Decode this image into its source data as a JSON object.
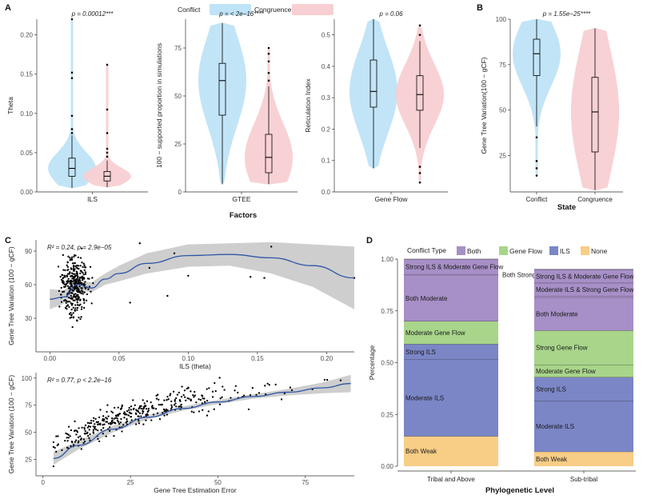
{
  "colors": {
    "conflict": "#bfe3f7",
    "congruence": "#f8cfd2",
    "both": "#a78fc7",
    "geneflow": "#a8d58a",
    "ils": "#7b86c6",
    "none": "#f8cd86",
    "line": "#2e56a6",
    "band": "#bdbdbd"
  },
  "panel_labels": {
    "a": "A",
    "b": "B",
    "c": "C",
    "d": "D"
  },
  "legend_a": {
    "conflict": "Conflict",
    "congruence": "Congruence"
  },
  "chart_data": [
    {
      "id": "a1",
      "type": "violin",
      "title": "p = 0.00012***",
      "xlabel": "ILS",
      "ylabel": "Theta",
      "ylim": [
        0,
        0.22
      ],
      "yticks": [
        "0.00",
        "0.05",
        "0.10",
        "0.15",
        "0.20"
      ],
      "ytick_values": [
        0,
        0.05,
        0.1,
        0.15,
        0.2
      ],
      "groups": [
        {
          "name": "Conflict",
          "min": 0.005,
          "q1": 0.02,
          "median": 0.03,
          "q3": 0.043,
          "max": 0.072,
          "outliers": [
            0.075,
            0.08,
            0.097,
            0.145,
            0.152,
            0.22
          ]
        },
        {
          "name": "Congruence",
          "min": 0.006,
          "q1": 0.014,
          "median": 0.02,
          "q3": 0.026,
          "max": 0.04,
          "outliers": [
            0.045,
            0.05,
            0.055,
            0.075,
            0.105,
            0.162
          ]
        }
      ]
    },
    {
      "id": "a2",
      "type": "violin",
      "title": "p = < 2e−16****",
      "xlabel": "GTEE",
      "ylabel": "100 − supported proportion in simulations",
      "ylim": [
        0,
        90
      ],
      "yticks": [
        "0",
        "25",
        "50",
        "75"
      ],
      "ytick_values": [
        0,
        25,
        50,
        75
      ],
      "groups": [
        {
          "name": "Conflict",
          "min": 4,
          "q1": 40,
          "median": 58,
          "q3": 67,
          "max": 88,
          "outliers": []
        },
        {
          "name": "Congruence",
          "min": 4,
          "q1": 10,
          "median": 18,
          "q3": 30,
          "max": 55,
          "outliers": [
            58,
            62,
            68,
            72,
            75
          ]
        }
      ]
    },
    {
      "id": "a3",
      "type": "violin",
      "title": "p = 0.06",
      "xlabel": "Gene Flow",
      "ylabel": "Reticulation Index",
      "ylim": [
        0,
        0.55
      ],
      "yticks": [
        "0.0",
        "0.1",
        "0.2",
        "0.3",
        "0.4",
        "0.5"
      ],
      "ytick_values": [
        0,
        0.1,
        0.2,
        0.3,
        0.4,
        0.5
      ],
      "groups": [
        {
          "name": "Conflict",
          "min": 0.075,
          "q1": 0.27,
          "median": 0.32,
          "q3": 0.42,
          "max": 0.55,
          "outliers": []
        },
        {
          "name": "Congruence",
          "min": 0.14,
          "q1": 0.26,
          "median": 0.31,
          "q3": 0.37,
          "max": 0.48,
          "outliers": [
            0.03,
            0.06,
            0.08,
            0.5,
            0.53
          ]
        }
      ]
    },
    {
      "id": "a_factor",
      "xlabel": "Factors"
    },
    {
      "id": "b",
      "type": "violin",
      "title": "p = 1.55e−25****",
      "xlabel": "State",
      "ylabel": "Gene Tree Variation(100 − gCF)",
      "ylim": [
        5,
        100
      ],
      "categories": [
        "Conflict",
        "Congruence"
      ],
      "yticks": [
        "25",
        "50",
        "75",
        "100"
      ],
      "ytick_values": [
        25,
        50,
        75,
        100
      ],
      "groups": [
        {
          "name": "Conflict",
          "min": 41,
          "q1": 69,
          "median": 81,
          "q3": 89,
          "max": 100,
          "outliers": [
            14,
            18,
            22,
            35
          ]
        },
        {
          "name": "Congruence",
          "min": 6,
          "q1": 27,
          "median": 49,
          "q3": 68,
          "max": 95,
          "outliers": []
        }
      ]
    },
    {
      "id": "c1",
      "type": "scatter",
      "annotation": "R² = 0.24, p = 2.9e−05",
      "xlabel": "ILS (theta)",
      "ylabel": "Gene Tree Variation (100 − gCF)",
      "xlim": [
        -0.01,
        0.22
      ],
      "ylim": [
        0,
        100
      ],
      "xticks": [
        "0.00",
        "0.05",
        "0.10",
        "0.15",
        "0.20"
      ],
      "xtick_values": [
        0,
        0.05,
        0.1,
        0.15,
        0.2
      ],
      "yticks": [
        "30",
        "60",
        "90"
      ],
      "ytick_values": [
        30,
        60,
        90
      ],
      "fit": {
        "x": [
          0,
          0.01,
          0.02,
          0.03,
          0.04,
          0.05,
          0.07,
          0.1,
          0.13,
          0.16,
          0.19,
          0.22
        ],
        "y": [
          47,
          49,
          60,
          57,
          65,
          70,
          79,
          86,
          87,
          84,
          77,
          66
        ]
      },
      "band": {
        "x": [
          0,
          0.01,
          0.02,
          0.03,
          0.04,
          0.05,
          0.07,
          0.1,
          0.13,
          0.16,
          0.19,
          0.22
        ],
        "lower": [
          38,
          43,
          56,
          53,
          60,
          63,
          70,
          76,
          77,
          70,
          58,
          38
        ],
        "upper": [
          56,
          55,
          64,
          62,
          70,
          77,
          88,
          96,
          97,
          98,
          96,
          94
        ]
      },
      "extra_points": [
        {
          "x": 0.085,
          "y": 50
        },
        {
          "x": 0.1,
          "y": 68
        },
        {
          "x": 0.145,
          "y": 67
        },
        {
          "x": 0.155,
          "y": 66
        },
        {
          "x": 0.16,
          "y": 94
        },
        {
          "x": 0.22,
          "y": 66
        },
        {
          "x": 0.09,
          "y": 88
        },
        {
          "x": 0.065,
          "y": 97
        },
        {
          "x": 0.072,
          "y": 75
        },
        {
          "x": 0.058,
          "y": 44
        }
      ]
    },
    {
      "id": "c2",
      "type": "scatter",
      "annotation": "R² = 0.77, p < 2.2e−16",
      "xlabel": "Gene Tree Estimation Error",
      "ylabel": "Gene Tree Variation (100 − gCF)",
      "xlim": [
        -2,
        89
      ],
      "ylim": [
        10,
        105
      ],
      "xticks": [
        "0",
        "25",
        "50",
        "75"
      ],
      "xtick_values": [
        0,
        25,
        50,
        75
      ],
      "yticks": [
        "25",
        "50",
        "75",
        "100"
      ],
      "ytick_values": [
        25,
        50,
        75,
        100
      ],
      "fit": {
        "x": [
          3,
          10,
          20,
          30,
          40,
          50,
          60,
          70,
          80,
          88
        ],
        "y": [
          26,
          38,
          53,
          64,
          72,
          78,
          83,
          87,
          91,
          95
        ]
      },
      "band": {
        "x": [
          3,
          10,
          20,
          30,
          40,
          50,
          60,
          70,
          80,
          88
        ],
        "lower": [
          20,
          34,
          50,
          62,
          70,
          76,
          81,
          84,
          86,
          87
        ],
        "upper": [
          32,
          42,
          56,
          66,
          74,
          80,
          85,
          90,
          96,
          103
        ]
      }
    },
    {
      "id": "d",
      "type": "bar",
      "title": "Conflict Type",
      "xlabel": "Phylogenetic Level",
      "ylabel": "Percentage",
      "categories": [
        "Tribal and Above",
        "Sub-tribal"
      ],
      "ylim": [
        0,
        1
      ],
      "yticks": [
        "0.00",
        "0.25",
        "0.50",
        "0.75",
        "1.00"
      ],
      "ytick_values": [
        0,
        0.25,
        0.5,
        0.75,
        1
      ],
      "legend": [
        {
          "name": "Both",
          "key": "both"
        },
        {
          "name": "Gene Flow",
          "key": "geneflow"
        },
        {
          "name": "ILS",
          "key": "ils"
        },
        {
          "name": "None",
          "key": "none"
        }
      ],
      "stacks": [
        [
          {
            "label": "Both Weak",
            "key": "none",
            "value": 0.145
          },
          {
            "label": "Moderate ILS",
            "key": "ils",
            "value": 0.37
          },
          {
            "label": "Strong ILS",
            "key": "ils",
            "value": 0.075
          },
          {
            "label": "Moderate Gene Flow",
            "key": "geneflow",
            "value": 0.11
          },
          {
            "label": "Both Moderate",
            "key": "both",
            "value": 0.22
          },
          {
            "label": "Both Strong",
            "key": "both",
            "value": 0.005,
            "outside": true
          },
          {
            "label": "Strong ILS & Moderate Gene Flow",
            "key": "both",
            "value": 0.075
          }
        ],
        [
          {
            "label": "Both Weak",
            "key": "none",
            "value": 0.07
          },
          {
            "label": "Moderate ILS",
            "key": "ils",
            "value": 0.245
          },
          {
            "label": "Strong ILS",
            "key": "ils",
            "value": 0.115
          },
          {
            "label": "Moderate Gene Flow",
            "key": "geneflow",
            "value": 0.06
          },
          {
            "label": "Strong Gene Flow",
            "key": "geneflow",
            "value": 0.165
          },
          {
            "label": "Both Moderate",
            "key": "both",
            "value": 0.16
          },
          {
            "label": "Both Strong",
            "key": "both",
            "value": 0.005,
            "outside": true
          },
          {
            "label": "Moderate ILS & Strong Gene Flow",
            "key": "both",
            "value": 0.065
          },
          {
            "label": "Strong ILS & Moderate Gene Flow",
            "key": "both",
            "value": 0.065
          }
        ]
      ]
    }
  ]
}
